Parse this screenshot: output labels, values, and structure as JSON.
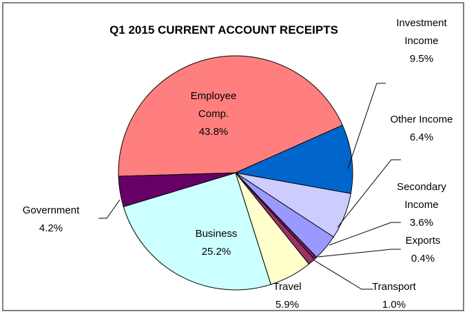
{
  "chart_data": {
    "type": "pie",
    "title": "Q1 2015 CURRENT ACCOUNT RECEIPTS",
    "categories": [
      "Employee Comp.",
      "Investment Income",
      "Other Income",
      "Secondary Income",
      "Exports",
      "Transport",
      "Travel",
      "Business",
      "Government"
    ],
    "values": [
      43.8,
      9.5,
      6.4,
      3.6,
      0.4,
      1.0,
      5.9,
      25.2,
      4.2
    ],
    "value_labels": [
      "43.8%",
      "9.5%",
      "6.4%",
      "3.6%",
      "0.4%",
      "1.0%",
      "5.9%",
      "25.2%",
      "4.2%"
    ],
    "colors": [
      "#ff7f7f",
      "#0066cc",
      "#ccccff",
      "#9999ff",
      "#7a1f5c",
      "#993366",
      "#ffffcc",
      "#ccffff",
      "#660066"
    ]
  }
}
